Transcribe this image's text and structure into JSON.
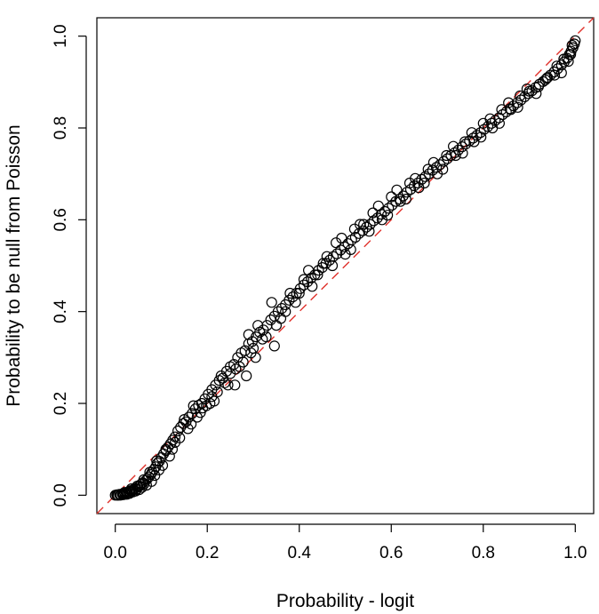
{
  "chart_data": {
    "type": "scatter",
    "title": "",
    "xlabel": "Probability - logit",
    "ylabel": "Probability to be null from Poisson",
    "xlim": [
      -0.04,
      1.04
    ],
    "ylim": [
      -0.04,
      1.04
    ],
    "x_ticks": [
      0.0,
      0.2,
      0.4,
      0.6,
      0.8,
      1.0
    ],
    "y_ticks": [
      0.0,
      0.2,
      0.4,
      0.6,
      0.8,
      1.0
    ],
    "x_tick_labels": [
      "0.0",
      "0.2",
      "0.4",
      "0.6",
      "0.8",
      "1.0"
    ],
    "y_tick_labels": [
      "0.0",
      "0.2",
      "0.4",
      "0.6",
      "0.8",
      "1.0"
    ],
    "marker": "open-circle",
    "point_color": "#000000",
    "reference_line": {
      "type": "identity",
      "slope": 1,
      "intercept": 0,
      "style": "dashed",
      "color": "#e0312b"
    },
    "grid": false,
    "legend": "none",
    "points": [
      [
        0.0,
        0.0
      ],
      [
        0.003,
        0.001
      ],
      [
        0.006,
        0.0
      ],
      [
        0.009,
        0.002
      ],
      [
        0.012,
        0.001
      ],
      [
        0.015,
        0.003
      ],
      [
        0.018,
        0.002
      ],
      [
        0.021,
        0.004
      ],
      [
        0.024,
        0.006
      ],
      [
        0.027,
        0.005
      ],
      [
        0.03,
        0.008
      ],
      [
        0.033,
        0.01
      ],
      [
        0.036,
        0.009
      ],
      [
        0.04,
        0.012
      ],
      [
        0.043,
        0.015
      ],
      [
        0.046,
        0.013
      ],
      [
        0.05,
        0.018
      ],
      [
        0.053,
        0.02
      ],
      [
        0.056,
        0.024
      ],
      [
        0.06,
        0.027
      ],
      [
        0.063,
        0.025
      ],
      [
        0.066,
        0.032
      ],
      [
        0.07,
        0.036
      ],
      [
        0.073,
        0.04
      ],
      [
        0.077,
        0.045
      ],
      [
        0.08,
        0.05
      ],
      [
        0.084,
        0.056
      ],
      [
        0.088,
        0.062
      ],
      [
        0.092,
        0.07
      ],
      [
        0.096,
        0.074
      ],
      [
        0.1,
        0.082
      ],
      [
        0.105,
        0.09
      ],
      [
        0.11,
        0.097
      ],
      [
        0.115,
        0.105
      ],
      [
        0.12,
        0.112
      ],
      [
        0.125,
        0.12
      ],
      [
        0.13,
        0.127
      ],
      [
        0.136,
        0.14
      ],
      [
        0.142,
        0.148
      ],
      [
        0.148,
        0.156
      ],
      [
        0.154,
        0.16
      ],
      [
        0.16,
        0.17
      ],
      [
        0.167,
        0.178
      ],
      [
        0.174,
        0.188
      ],
      [
        0.181,
        0.196
      ],
      [
        0.188,
        0.2
      ],
      [
        0.195,
        0.21
      ],
      [
        0.202,
        0.22
      ],
      [
        0.21,
        0.23
      ],
      [
        0.218,
        0.24
      ],
      [
        0.226,
        0.25
      ],
      [
        0.234,
        0.255
      ],
      [
        0.242,
        0.27
      ],
      [
        0.25,
        0.28
      ],
      [
        0.258,
        0.285
      ],
      [
        0.266,
        0.3
      ],
      [
        0.274,
        0.31
      ],
      [
        0.282,
        0.315
      ],
      [
        0.29,
        0.33
      ],
      [
        0.298,
        0.335
      ],
      [
        0.306,
        0.345
      ],
      [
        0.314,
        0.355
      ],
      [
        0.322,
        0.36
      ],
      [
        0.33,
        0.37
      ],
      [
        0.338,
        0.382
      ],
      [
        0.346,
        0.39
      ],
      [
        0.354,
        0.4
      ],
      [
        0.362,
        0.407
      ],
      [
        0.37,
        0.415
      ],
      [
        0.378,
        0.425
      ],
      [
        0.386,
        0.432
      ],
      [
        0.394,
        0.44
      ],
      [
        0.402,
        0.45
      ],
      [
        0.41,
        0.458
      ],
      [
        0.418,
        0.465
      ],
      [
        0.426,
        0.473
      ],
      [
        0.434,
        0.48
      ],
      [
        0.442,
        0.49
      ],
      [
        0.45,
        0.496
      ],
      [
        0.458,
        0.505
      ],
      [
        0.466,
        0.512
      ],
      [
        0.474,
        0.52
      ],
      [
        0.482,
        0.526
      ],
      [
        0.49,
        0.534
      ],
      [
        0.498,
        0.541
      ],
      [
        0.506,
        0.548
      ],
      [
        0.514,
        0.556
      ],
      [
        0.522,
        0.562
      ],
      [
        0.53,
        0.57
      ],
      [
        0.538,
        0.576
      ],
      [
        0.546,
        0.584
      ],
      [
        0.554,
        0.59
      ],
      [
        0.562,
        0.598
      ],
      [
        0.57,
        0.604
      ],
      [
        0.578,
        0.612
      ],
      [
        0.586,
        0.618
      ],
      [
        0.594,
        0.625
      ],
      [
        0.602,
        0.632
      ],
      [
        0.61,
        0.64
      ],
      [
        0.618,
        0.645
      ],
      [
        0.626,
        0.652
      ],
      [
        0.634,
        0.66
      ],
      [
        0.642,
        0.666
      ],
      [
        0.65,
        0.674
      ],
      [
        0.658,
        0.68
      ],
      [
        0.666,
        0.688
      ],
      [
        0.674,
        0.694
      ],
      [
        0.682,
        0.7
      ],
      [
        0.69,
        0.708
      ],
      [
        0.698,
        0.714
      ],
      [
        0.706,
        0.72
      ],
      [
        0.714,
        0.727
      ],
      [
        0.722,
        0.733
      ],
      [
        0.73,
        0.74
      ],
      [
        0.738,
        0.746
      ],
      [
        0.746,
        0.752
      ],
      [
        0.754,
        0.759
      ],
      [
        0.762,
        0.765
      ],
      [
        0.77,
        0.772
      ],
      [
        0.778,
        0.778
      ],
      [
        0.786,
        0.784
      ],
      [
        0.794,
        0.79
      ],
      [
        0.802,
        0.797
      ],
      [
        0.81,
        0.803
      ],
      [
        0.818,
        0.81
      ],
      [
        0.826,
        0.816
      ],
      [
        0.834,
        0.822
      ],
      [
        0.842,
        0.829
      ],
      [
        0.85,
        0.835
      ],
      [
        0.858,
        0.842
      ],
      [
        0.866,
        0.848
      ],
      [
        0.874,
        0.855
      ],
      [
        0.882,
        0.861
      ],
      [
        0.89,
        0.868
      ],
      [
        0.898,
        0.875
      ],
      [
        0.906,
        0.881
      ],
      [
        0.914,
        0.888
      ],
      [
        0.922,
        0.895
      ],
      [
        0.93,
        0.901
      ],
      [
        0.938,
        0.908
      ],
      [
        0.946,
        0.915
      ],
      [
        0.954,
        0.922
      ],
      [
        0.962,
        0.929
      ],
      [
        0.97,
        0.937
      ],
      [
        0.976,
        0.944
      ],
      [
        0.982,
        0.952
      ],
      [
        0.987,
        0.96
      ],
      [
        0.991,
        0.967
      ],
      [
        0.995,
        0.975
      ],
      [
        0.998,
        0.983
      ],
      [
        1.0,
        0.99
      ],
      [
        0.02,
        0.006
      ],
      [
        0.035,
        0.014
      ],
      [
        0.048,
        0.02
      ],
      [
        0.062,
        0.034
      ],
      [
        0.075,
        0.05
      ],
      [
        0.09,
        0.075
      ],
      [
        0.11,
        0.1
      ],
      [
        0.13,
        0.115
      ],
      [
        0.15,
        0.165
      ],
      [
        0.17,
        0.195
      ],
      [
        0.19,
        0.19
      ],
      [
        0.21,
        0.215
      ],
      [
        0.23,
        0.26
      ],
      [
        0.25,
        0.265
      ],
      [
        0.27,
        0.28
      ],
      [
        0.29,
        0.35
      ],
      [
        0.3,
        0.32
      ],
      [
        0.31,
        0.37
      ],
      [
        0.32,
        0.34
      ],
      [
        0.34,
        0.42
      ],
      [
        0.35,
        0.37
      ],
      [
        0.36,
        0.385
      ],
      [
        0.38,
        0.44
      ],
      [
        0.4,
        0.44
      ],
      [
        0.42,
        0.49
      ],
      [
        0.44,
        0.48
      ],
      [
        0.46,
        0.52
      ],
      [
        0.48,
        0.55
      ],
      [
        0.5,
        0.525
      ],
      [
        0.52,
        0.58
      ],
      [
        0.54,
        0.59
      ],
      [
        0.56,
        0.615
      ],
      [
        0.58,
        0.6
      ],
      [
        0.6,
        0.65
      ],
      [
        0.62,
        0.64
      ],
      [
        0.64,
        0.68
      ],
      [
        0.66,
        0.67
      ],
      [
        0.68,
        0.71
      ],
      [
        0.7,
        0.7
      ],
      [
        0.72,
        0.74
      ],
      [
        0.74,
        0.74
      ],
      [
        0.76,
        0.77
      ],
      [
        0.78,
        0.77
      ],
      [
        0.8,
        0.81
      ],
      [
        0.82,
        0.8
      ],
      [
        0.84,
        0.84
      ],
      [
        0.86,
        0.84
      ],
      [
        0.88,
        0.87
      ],
      [
        0.9,
        0.88
      ],
      [
        0.92,
        0.89
      ],
      [
        0.94,
        0.91
      ],
      [
        0.96,
        0.935
      ],
      [
        0.97,
        0.92
      ],
      [
        0.99,
        0.96
      ],
      [
        0.26,
        0.24
      ],
      [
        0.285,
        0.26
      ],
      [
        0.305,
        0.3
      ],
      [
        0.328,
        0.345
      ],
      [
        0.346,
        0.325
      ],
      [
        0.37,
        0.4
      ],
      [
        0.392,
        0.42
      ],
      [
        0.41,
        0.47
      ],
      [
        0.428,
        0.455
      ],
      [
        0.452,
        0.505
      ],
      [
        0.472,
        0.5
      ],
      [
        0.492,
        0.56
      ],
      [
        0.512,
        0.535
      ],
      [
        0.532,
        0.59
      ],
      [
        0.552,
        0.575
      ],
      [
        0.572,
        0.63
      ],
      [
        0.592,
        0.61
      ],
      [
        0.612,
        0.665
      ],
      [
        0.632,
        0.645
      ],
      [
        0.652,
        0.69
      ],
      [
        0.672,
        0.68
      ],
      [
        0.692,
        0.725
      ],
      [
        0.712,
        0.71
      ],
      [
        0.735,
        0.76
      ],
      [
        0.755,
        0.745
      ],
      [
        0.775,
        0.79
      ],
      [
        0.795,
        0.78
      ],
      [
        0.815,
        0.82
      ],
      [
        0.835,
        0.81
      ],
      [
        0.855,
        0.855
      ],
      [
        0.875,
        0.845
      ],
      [
        0.895,
        0.885
      ],
      [
        0.915,
        0.875
      ],
      [
        0.935,
        0.905
      ],
      [
        0.955,
        0.915
      ],
      [
        0.975,
        0.95
      ],
      [
        0.985,
        0.945
      ],
      [
        0.993,
        0.98
      ],
      [
        0.005,
        0.0
      ],
      [
        0.011,
        0.0
      ],
      [
        0.017,
        0.001
      ],
      [
        0.025,
        0.002
      ],
      [
        0.031,
        0.004
      ],
      [
        0.038,
        0.007
      ],
      [
        0.044,
        0.009
      ],
      [
        0.052,
        0.012
      ],
      [
        0.058,
        0.017
      ],
      [
        0.068,
        0.022
      ],
      [
        0.079,
        0.03
      ],
      [
        0.086,
        0.043
      ],
      [
        0.095,
        0.055
      ],
      [
        0.103,
        0.065
      ],
      [
        0.118,
        0.085
      ],
      [
        0.124,
        0.1
      ],
      [
        0.14,
        0.125
      ],
      [
        0.158,
        0.145
      ],
      [
        0.165,
        0.155
      ],
      [
        0.178,
        0.17
      ],
      [
        0.185,
        0.18
      ],
      [
        0.198,
        0.195
      ],
      [
        0.206,
        0.2
      ],
      [
        0.215,
        0.205
      ],
      [
        0.222,
        0.225
      ],
      [
        0.238,
        0.245
      ],
      [
        0.245,
        0.24
      ],
      [
        0.262,
        0.275
      ],
      [
        0.278,
        0.29
      ],
      [
        0.295,
        0.31
      ]
    ]
  }
}
